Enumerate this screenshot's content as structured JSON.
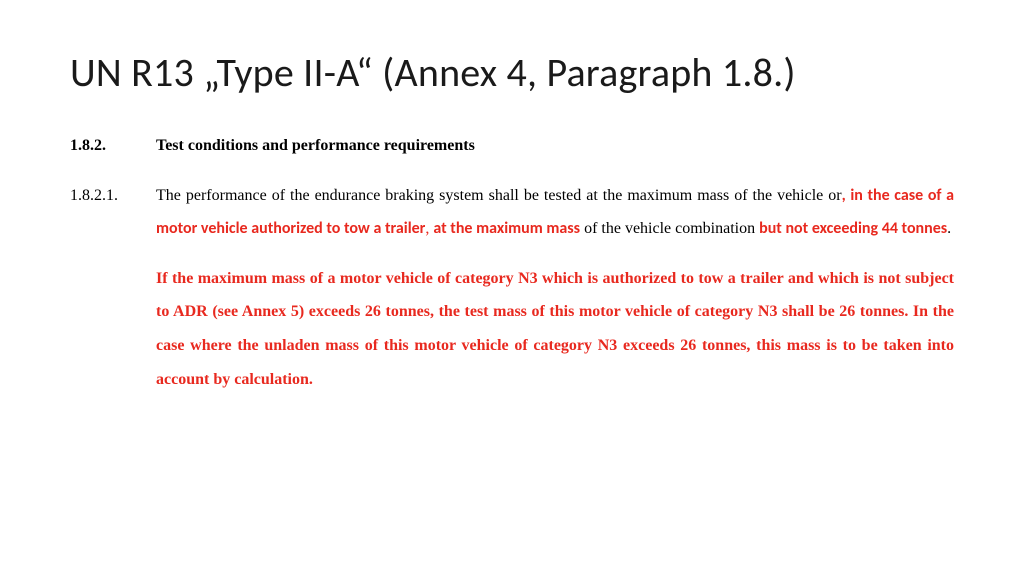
{
  "title": "UN R13 „Type II-A“ (Annex 4, Paragraph 1.8.)",
  "section": {
    "num": "1.8.2.",
    "heading": "Test conditions and performance requirements"
  },
  "clause": {
    "num": "1.8.2.1.",
    "t1": "The performance of the endurance braking system shall be tested at the maximum mass of the vehicle or",
    "t2": ", in the case of a motor vehicle authorized to tow a trailer",
    "t3": ", ",
    "t4": "at the maximum mass",
    "t5": " of the vehicle combination ",
    "t6": "but not exceeding 44 tonnes",
    "t7": "."
  },
  "para2": "If the maximum mass of a motor vehicle of category N3 which is authorized to tow a trailer and which is not subject to ADR (see Annex 5) exceeds 26 tonnes, the test mass of this motor vehicle of category N3 shall be 26 tonnes. In the case where the unladen mass of this motor vehicle of category N3 exceeds 26 tonnes, this mass is to be taken into account by calculation.",
  "colors": {
    "text": "#000000",
    "highlight": "#e8291f",
    "background": "#ffffff"
  },
  "fonts": {
    "title_family": "Calibri",
    "body_family": "Times New Roman",
    "title_size_pt": 40,
    "body_size_pt": 16
  }
}
